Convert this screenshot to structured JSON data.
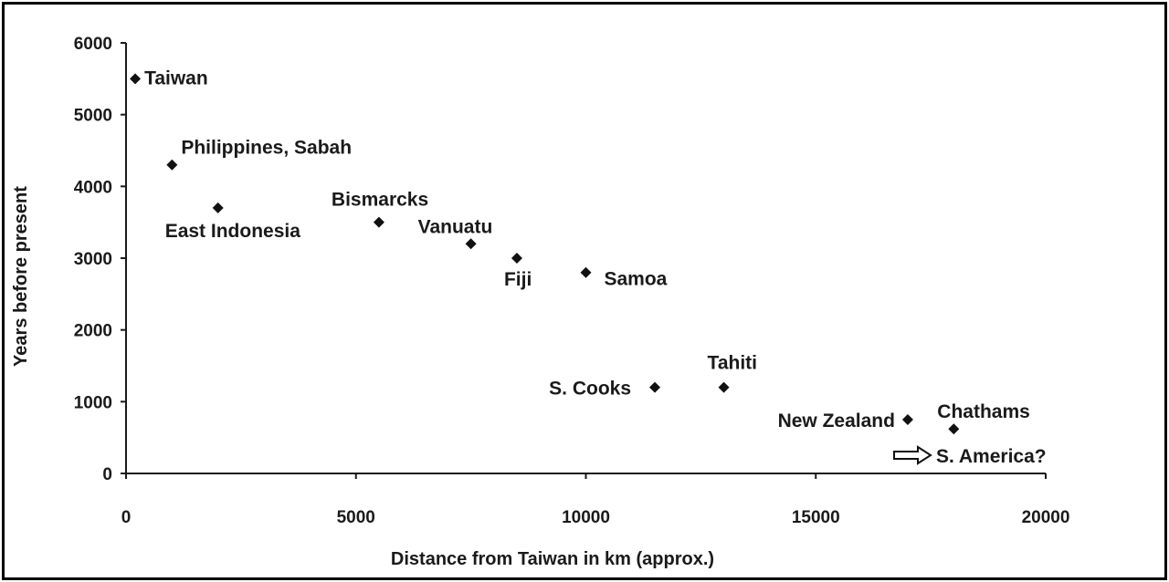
{
  "chart_data": {
    "type": "scatter",
    "xlabel": "Distance from Taiwan in km (approx.)",
    "ylabel": "Years before present",
    "xlim": [
      0,
      20000
    ],
    "ylim": [
      0,
      6000
    ],
    "x_ticks": [
      "0",
      "5000",
      "10000",
      "15000",
      "20000"
    ],
    "y_ticks": [
      "0",
      "1000",
      "2000",
      "3000",
      "4000",
      "5000",
      "6000"
    ],
    "grid": false,
    "legend": "none",
    "points": [
      {
        "label": "Taiwan",
        "x": 200,
        "y": 5500
      },
      {
        "label": "Philippines, Sabah",
        "x": 1000,
        "y": 4300
      },
      {
        "label": "East Indonesia",
        "x": 2000,
        "y": 3700
      },
      {
        "label": "Bismarcks",
        "x": 5500,
        "y": 3500
      },
      {
        "label": "Vanuatu",
        "x": 7500,
        "y": 3200
      },
      {
        "label": "Fiji",
        "x": 8500,
        "y": 3000
      },
      {
        "label": "Samoa",
        "x": 10000,
        "y": 2800
      },
      {
        "label": "S. Cooks",
        "x": 11500,
        "y": 1200
      },
      {
        "label": "Tahiti",
        "x": 13000,
        "y": 1200
      },
      {
        "label": "New Zealand",
        "x": 17000,
        "y": 750
      },
      {
        "label": "Chathams",
        "x": 18000,
        "y": 620
      }
    ],
    "annotations": [
      {
        "text": "S. America?"
      }
    ]
  }
}
